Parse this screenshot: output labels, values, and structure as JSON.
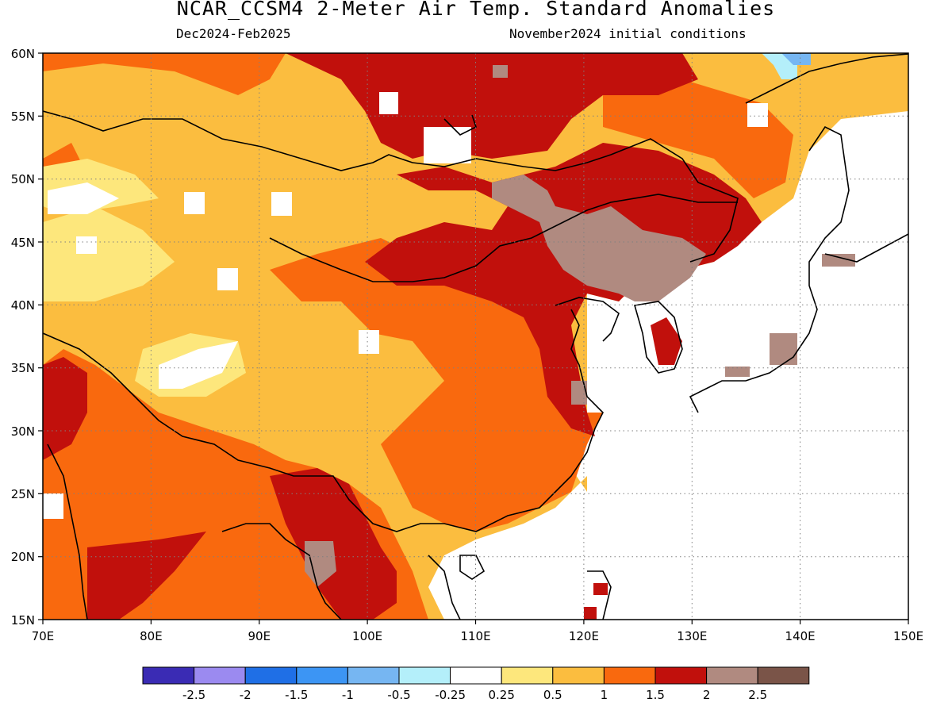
{
  "title": "NCAR_CCSM4 2-Meter Air Temp. Standard Anomalies",
  "subtitle_left": "Dec2024-Feb2025",
  "subtitle_right": "November2024 initial conditions",
  "map": {
    "lon_range": [
      70,
      150
    ],
    "lat_range": [
      15,
      60
    ],
    "lon_ticks": [
      "70E",
      "80E",
      "90E",
      "100E",
      "110E",
      "120E",
      "130E",
      "140E",
      "150E"
    ],
    "lat_ticks": [
      "60N",
      "55N",
      "50N",
      "45N",
      "40N",
      "35N",
      "30N",
      "25N",
      "20N",
      "15N"
    ],
    "grid": "dotted"
  },
  "colorbar": {
    "colors": [
      "#3a2bb4",
      "#9b8af0",
      "#1f6fe6",
      "#3c95f4",
      "#76b6f2",
      "#b4effa",
      "#ffffff",
      "#fde77c",
      "#fbbd3f",
      "#f9690e",
      "#c1100c",
      "#b08a80",
      "#7a5448"
    ],
    "labels": [
      "-2.5",
      "-2",
      "-1.5",
      "-1",
      "-0.5",
      "-0.25",
      "0.25",
      "0.5",
      "1",
      "1.5",
      "2",
      "2.5"
    ]
  },
  "colors": {
    "c05": "#fde77c",
    "c1": "#fbbd3f",
    "c15": "#f9690e",
    "c2": "#c1100c",
    "c25": "#b08a80",
    "blue1": "#76b6f2",
    "blue2": "#b4effa",
    "land_line": "#000000"
  }
}
